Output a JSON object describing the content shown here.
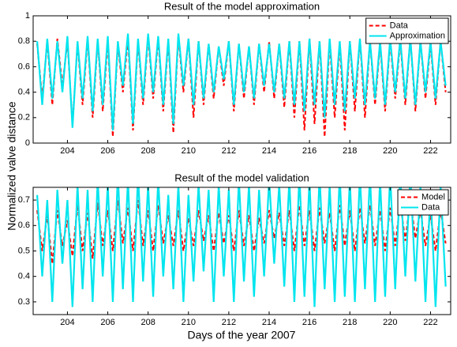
{
  "chart_data": [
    {
      "type": "line",
      "title": "Result of the model approximation",
      "ylabel": "Normalized valve distance",
      "x": [
        202.5,
        202.75,
        203,
        203.25,
        203.5,
        203.75,
        204,
        204.25,
        204.5,
        204.75,
        205,
        205.25,
        205.5,
        205.75,
        206,
        206.25,
        206.5,
        206.75,
        207,
        207.25,
        207.5,
        207.75,
        208,
        208.25,
        208.5,
        208.75,
        209,
        209.25,
        209.5,
        209.75,
        210,
        210.25,
        210.5,
        210.75,
        211,
        211.25,
        211.5,
        211.75,
        212,
        212.25,
        212.5,
        212.75,
        213,
        213.25,
        213.5,
        213.75,
        214,
        214.25,
        214.5,
        214.75,
        215,
        215.25,
        215.5,
        215.75,
        216,
        216.25,
        216.5,
        216.75,
        217,
        217.25,
        217.5,
        217.75,
        218,
        218.25,
        218.5,
        218.75,
        219,
        219.25,
        219.5,
        219.75,
        220,
        220.25,
        220.5,
        220.75,
        221,
        221.25,
        221.5,
        221.75,
        222,
        222.25,
        222.5,
        222.75
      ],
      "series": [
        {
          "name": "Data",
          "color": "#ff0000",
          "dash": true,
          "values": [
            0.78,
            0.35,
            0.8,
            0.3,
            0.82,
            0.45,
            0.8,
            0.15,
            0.78,
            0.3,
            0.82,
            0.2,
            0.8,
            0.25,
            0.8,
            0.05,
            0.78,
            0.4,
            0.82,
            0.1,
            0.8,
            0.3,
            0.84,
            0.35,
            0.82,
            0.25,
            0.8,
            0.08,
            0.84,
            0.4,
            0.82,
            0.2,
            0.8,
            0.3,
            0.78,
            0.35,
            0.76,
            0.45,
            0.8,
            0.25,
            0.78,
            0.35,
            0.76,
            0.3,
            0.78,
            0.4,
            0.8,
            0.35,
            0.78,
            0.28,
            0.8,
            0.2,
            0.8,
            0.1,
            0.82,
            0.15,
            0.8,
            0.05,
            0.8,
            0.2,
            0.78,
            0.1,
            0.8,
            0.25,
            0.82,
            0.2,
            0.8,
            0.3,
            0.78,
            0.25,
            0.8,
            0.35,
            0.8,
            0.3,
            0.82,
            0.25,
            0.8,
            0.35,
            0.78,
            0.3,
            0.8,
            0.4
          ]
        },
        {
          "name": "Approximation",
          "color": "#00e5ee",
          "dash": false,
          "values": [
            0.8,
            0.3,
            0.82,
            0.35,
            0.8,
            0.4,
            0.84,
            0.12,
            0.8,
            0.35,
            0.84,
            0.25,
            0.82,
            0.3,
            0.84,
            0.1,
            0.8,
            0.45,
            0.86,
            0.15,
            0.82,
            0.35,
            0.86,
            0.4,
            0.84,
            0.3,
            0.82,
            0.15,
            0.86,
            0.45,
            0.82,
            0.3,
            0.8,
            0.35,
            0.78,
            0.4,
            0.76,
            0.5,
            0.8,
            0.3,
            0.78,
            0.4,
            0.76,
            0.35,
            0.78,
            0.45,
            0.78,
            0.4,
            0.78,
            0.35,
            0.8,
            0.3,
            0.8,
            0.25,
            0.82,
            0.3,
            0.8,
            0.2,
            0.82,
            0.3,
            0.8,
            0.25,
            0.8,
            0.35,
            0.82,
            0.3,
            0.8,
            0.35,
            0.8,
            0.3,
            0.82,
            0.4,
            0.82,
            0.35,
            0.82,
            0.3,
            0.8,
            0.4,
            0.8,
            0.35,
            0.8,
            0.45
          ]
        }
      ],
      "xlim": [
        202.3,
        223
      ],
      "xticks": [
        204,
        206,
        208,
        210,
        212,
        214,
        216,
        218,
        220,
        222
      ],
      "ylim": [
        0,
        1
      ],
      "yticks": [
        0,
        0.2,
        0.4,
        0.6,
        0.8,
        1
      ],
      "legend": "northeast"
    },
    {
      "type": "line",
      "title": "Result of the model validation",
      "xlabel": "Days of the year 2007",
      "x": [
        202.5,
        202.75,
        203,
        203.25,
        203.5,
        203.75,
        204,
        204.25,
        204.5,
        204.75,
        205,
        205.25,
        205.5,
        205.75,
        206,
        206.25,
        206.5,
        206.75,
        207,
        207.25,
        207.5,
        207.75,
        208,
        208.25,
        208.5,
        208.75,
        209,
        209.25,
        209.5,
        209.75,
        210,
        210.25,
        210.5,
        210.75,
        211,
        211.25,
        211.5,
        211.75,
        212,
        212.25,
        212.5,
        212.75,
        213,
        213.25,
        213.5,
        213.75,
        214,
        214.25,
        214.5,
        214.75,
        215,
        215.25,
        215.5,
        215.75,
        216,
        216.25,
        216.5,
        216.75,
        217,
        217.25,
        217.5,
        217.75,
        218,
        218.25,
        218.5,
        218.75,
        219,
        219.25,
        219.5,
        219.75,
        220,
        220.25,
        220.5,
        220.75,
        221,
        221.25,
        221.5,
        221.75,
        222,
        222.25,
        222.5,
        222.75
      ],
      "series": [
        {
          "name": "Model",
          "color": "#ff0000",
          "dash": true,
          "values": [
            0.66,
            0.5,
            0.64,
            0.45,
            0.66,
            0.52,
            0.62,
            0.48,
            0.68,
            0.5,
            0.65,
            0.47,
            0.69,
            0.52,
            0.66,
            0.5,
            0.7,
            0.53,
            0.67,
            0.5,
            0.7,
            0.52,
            0.66,
            0.5,
            0.68,
            0.53,
            0.64,
            0.52,
            0.66,
            0.5,
            0.63,
            0.52,
            0.66,
            0.54,
            0.64,
            0.5,
            0.65,
            0.53,
            0.64,
            0.5,
            0.66,
            0.52,
            0.64,
            0.5,
            0.63,
            0.53,
            0.66,
            0.55,
            0.65,
            0.52,
            0.66,
            0.5,
            0.68,
            0.52,
            0.66,
            0.5,
            0.67,
            0.53,
            0.65,
            0.5,
            0.68,
            0.52,
            0.66,
            0.5,
            0.67,
            0.53,
            0.68,
            0.52,
            0.66,
            0.5,
            0.67,
            0.52,
            0.69,
            0.54,
            0.7,
            0.55,
            0.66,
            0.52,
            0.64,
            0.5,
            0.66,
            0.53
          ]
        },
        {
          "name": "Data",
          "color": "#00e5ee",
          "dash": false,
          "values": [
            0.72,
            0.4,
            0.7,
            0.3,
            0.74,
            0.45,
            0.7,
            0.28,
            0.76,
            0.35,
            0.74,
            0.3,
            0.78,
            0.4,
            0.76,
            0.3,
            0.8,
            0.35,
            0.78,
            0.3,
            0.8,
            0.38,
            0.76,
            0.32,
            0.78,
            0.4,
            0.72,
            0.35,
            0.76,
            0.3,
            0.72,
            0.38,
            0.76,
            0.42,
            0.74,
            0.3,
            0.76,
            0.4,
            0.74,
            0.3,
            0.78,
            0.38,
            0.76,
            0.32,
            0.74,
            0.4,
            0.78,
            0.45,
            0.76,
            0.36,
            0.78,
            0.3,
            0.8,
            0.32,
            0.78,
            0.28,
            0.8,
            0.35,
            0.76,
            0.3,
            0.8,
            0.32,
            0.78,
            0.3,
            0.8,
            0.35,
            0.8,
            0.3,
            0.78,
            0.32,
            0.8,
            0.35,
            0.8,
            0.4,
            0.8,
            0.38,
            0.76,
            0.3,
            0.74,
            0.28,
            0.76,
            0.36
          ]
        }
      ],
      "xlim": [
        202.3,
        223
      ],
      "xticks": [
        204,
        206,
        208,
        210,
        212,
        214,
        216,
        218,
        220,
        222
      ],
      "ylim": [
        0.25,
        0.75
      ],
      "yticks": [
        0.3,
        0.4,
        0.5,
        0.6,
        0.7
      ],
      "legend": "northeast"
    }
  ]
}
